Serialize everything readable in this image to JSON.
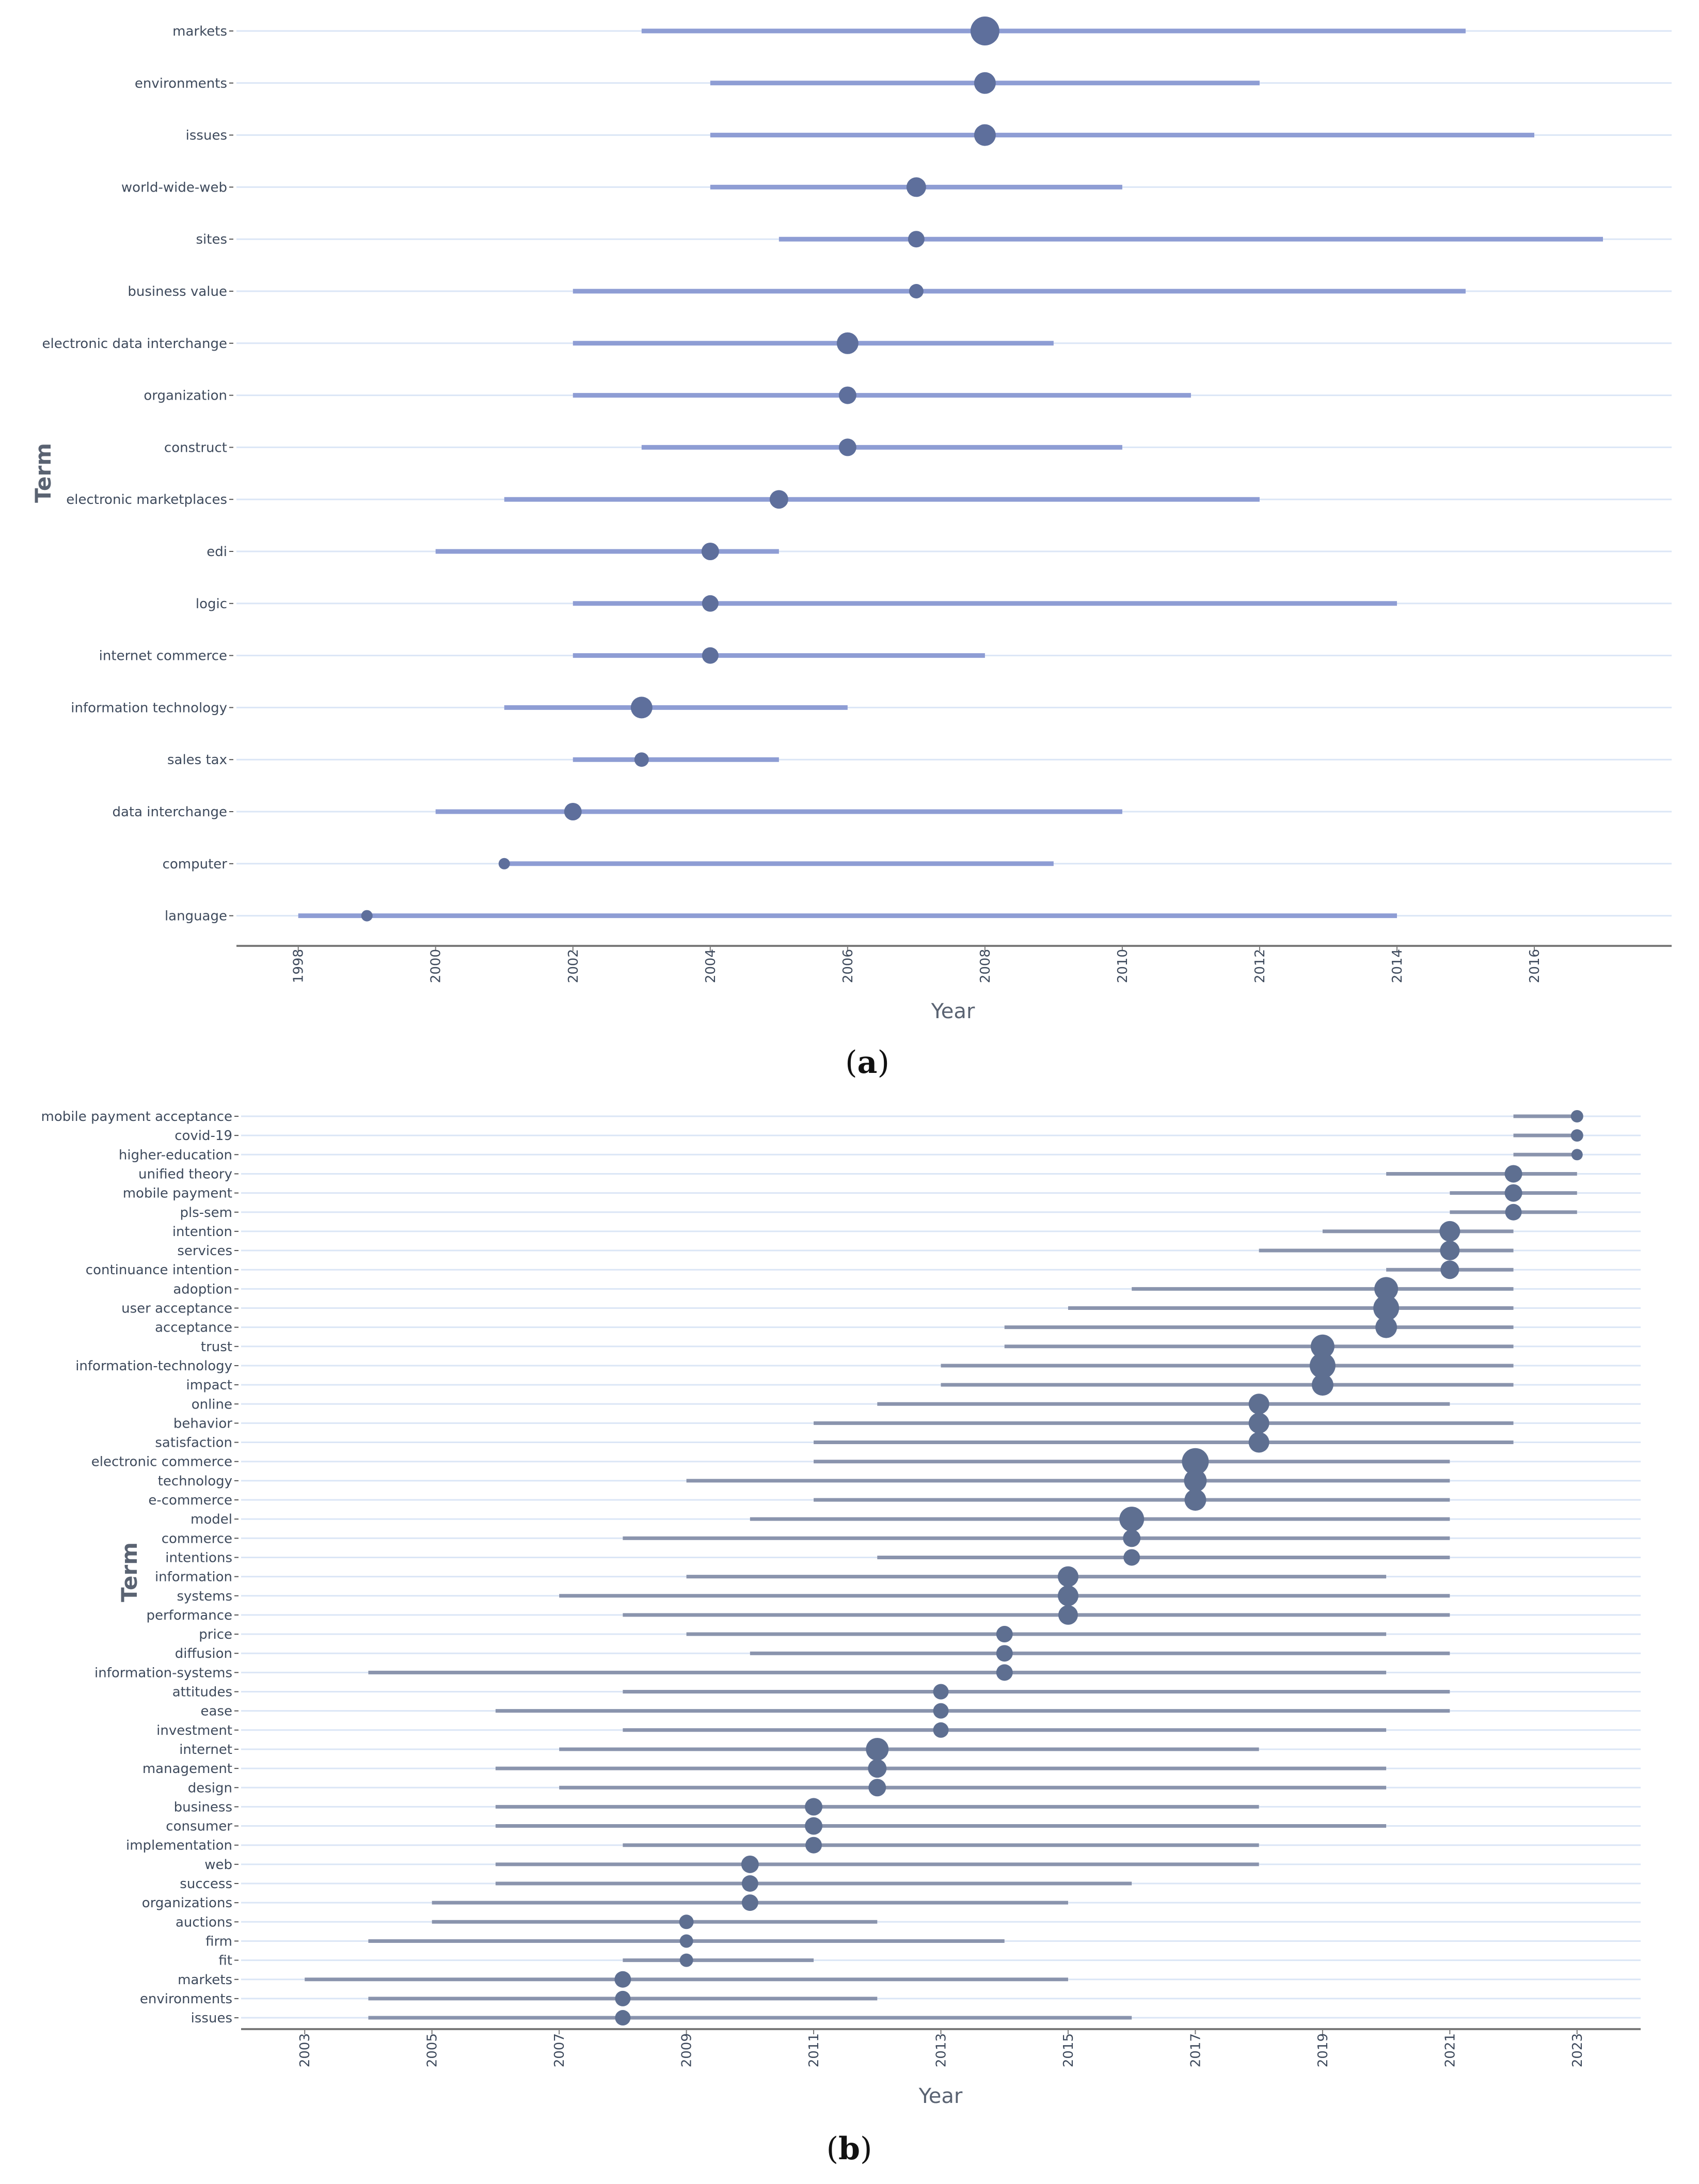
{
  "colors": {
    "a_line": "#8e9dd4",
    "a_point": "#5e6f9c",
    "b_line": "#8a94ad",
    "b_point": "#5e6f91",
    "grid": "#dbe6f6",
    "axis": "#7a7a7a"
  },
  "chart_data": [
    {
      "id": "a",
      "type": "scatter",
      "caption": {
        "open": "(",
        "letter": "a",
        "close": ")"
      },
      "xlabel": "Year",
      "ylabel": "Term",
      "xlim": [
        1997.1,
        2018.0
      ],
      "xticks": [
        "1998",
        "2000",
        "2002",
        "2004",
        "2006",
        "2008",
        "2010",
        "2012",
        "2014",
        "2016"
      ],
      "point_sizes": [
        28,
        21,
        21,
        19,
        16,
        14,
        21,
        17,
        17,
        18,
        17,
        16,
        16,
        21,
        14,
        17,
        11,
        11
      ],
      "terms": [
        {
          "term": "markets",
          "start": 2003,
          "median": 2008,
          "end": 2015
        },
        {
          "term": "environments",
          "start": 2004,
          "median": 2008,
          "end": 2012
        },
        {
          "term": "issues",
          "start": 2004,
          "median": 2008,
          "end": 2016
        },
        {
          "term": "world-wide-web",
          "start": 2004,
          "median": 2007,
          "end": 2010
        },
        {
          "term": "sites",
          "start": 2005,
          "median": 2007,
          "end": 2017
        },
        {
          "term": "business value",
          "start": 2002,
          "median": 2007,
          "end": 2015
        },
        {
          "term": "electronic data interchange",
          "start": 2002,
          "median": 2006,
          "end": 2009
        },
        {
          "term": "organization",
          "start": 2002,
          "median": 2006,
          "end": 2011
        },
        {
          "term": "construct",
          "start": 2003,
          "median": 2006,
          "end": 2010
        },
        {
          "term": "electronic marketplaces",
          "start": 2001,
          "median": 2005,
          "end": 2012
        },
        {
          "term": "edi",
          "start": 2000,
          "median": 2004,
          "end": 2005
        },
        {
          "term": "logic",
          "start": 2002,
          "median": 2004,
          "end": 2014
        },
        {
          "term": "internet commerce",
          "start": 2002,
          "median": 2004,
          "end": 2008
        },
        {
          "term": "information technology",
          "start": 2001,
          "median": 2003,
          "end": 2006
        },
        {
          "term": "sales tax",
          "start": 2002,
          "median": 2003,
          "end": 2005
        },
        {
          "term": "data interchange",
          "start": 2000,
          "median": 2002,
          "end": 2010
        },
        {
          "term": "computer",
          "start": 2001,
          "median": 2001,
          "end": 2009
        },
        {
          "term": "language",
          "start": 1998,
          "median": 1999,
          "end": 2014
        }
      ]
    },
    {
      "id": "b",
      "type": "scatter",
      "caption": {
        "open": "(",
        "letter": "b",
        "close": ")"
      },
      "xlabel": "Year",
      "ylabel": "Term",
      "xlim": [
        2002.0,
        2024.0
      ],
      "xticks": [
        "2003",
        "2005",
        "2007",
        "2009",
        "2011",
        "2013",
        "2015",
        "2017",
        "2019",
        "2021",
        "2023"
      ],
      "point_sizes": [
        12,
        12,
        11,
        17,
        17,
        16,
        20,
        19,
        18,
        23,
        25,
        21,
        23,
        25,
        21,
        20,
        20,
        20,
        26,
        22,
        21,
        24,
        17,
        16,
        20,
        20,
        19,
        16,
        16,
        16,
        15,
        15,
        15,
        22,
        18,
        17,
        17,
        17,
        16,
        17,
        16,
        16,
        14,
        13,
        13,
        16,
        15,
        15
      ],
      "terms": [
        {
          "term": "mobile payment acceptance",
          "start": 2022,
          "median": 2023,
          "end": 2023
        },
        {
          "term": "covid-19",
          "start": 2022,
          "median": 2023,
          "end": 2023
        },
        {
          "term": "higher-education",
          "start": 2022,
          "median": 2023,
          "end": 2023
        },
        {
          "term": "unified theory",
          "start": 2020,
          "median": 2022,
          "end": 2023
        },
        {
          "term": "mobile payment",
          "start": 2021,
          "median": 2022,
          "end": 2023
        },
        {
          "term": "pls-sem",
          "start": 2021,
          "median": 2022,
          "end": 2023
        },
        {
          "term": "intention",
          "start": 2019,
          "median": 2021,
          "end": 2022
        },
        {
          "term": "services",
          "start": 2018,
          "median": 2021,
          "end": 2022
        },
        {
          "term": "continuance intention",
          "start": 2020,
          "median": 2021,
          "end": 2022
        },
        {
          "term": "adoption",
          "start": 2016,
          "median": 2020,
          "end": 2022
        },
        {
          "term": "user acceptance",
          "start": 2015,
          "median": 2020,
          "end": 2022
        },
        {
          "term": "acceptance",
          "start": 2014,
          "median": 2020,
          "end": 2022
        },
        {
          "term": "trust",
          "start": 2014,
          "median": 2019,
          "end": 2022
        },
        {
          "term": "information-technology",
          "start": 2013,
          "median": 2019,
          "end": 2022
        },
        {
          "term": "impact",
          "start": 2013,
          "median": 2019,
          "end": 2022
        },
        {
          "term": "online",
          "start": 2012,
          "median": 2018,
          "end": 2021
        },
        {
          "term": "behavior",
          "start": 2011,
          "median": 2018,
          "end": 2022
        },
        {
          "term": "satisfaction",
          "start": 2011,
          "median": 2018,
          "end": 2022
        },
        {
          "term": "electronic commerce",
          "start": 2011,
          "median": 2017,
          "end": 2021
        },
        {
          "term": "technology",
          "start": 2009,
          "median": 2017,
          "end": 2021
        },
        {
          "term": "e-commerce",
          "start": 2011,
          "median": 2017,
          "end": 2021
        },
        {
          "term": "model",
          "start": 2010,
          "median": 2016,
          "end": 2021
        },
        {
          "term": "commerce",
          "start": 2008,
          "median": 2016,
          "end": 2021
        },
        {
          "term": "intentions",
          "start": 2012,
          "median": 2016,
          "end": 2021
        },
        {
          "term": "information",
          "start": 2009,
          "median": 2015,
          "end": 2020
        },
        {
          "term": "systems",
          "start": 2007,
          "median": 2015,
          "end": 2021
        },
        {
          "term": "performance",
          "start": 2008,
          "median": 2015,
          "end": 2021
        },
        {
          "term": "price",
          "start": 2009,
          "median": 2014,
          "end": 2020
        },
        {
          "term": "diffusion",
          "start": 2010,
          "median": 2014,
          "end": 2021
        },
        {
          "term": "information-systems",
          "start": 2004,
          "median": 2014,
          "end": 2020
        },
        {
          "term": "attitudes",
          "start": 2008,
          "median": 2013,
          "end": 2021
        },
        {
          "term": "ease",
          "start": 2006,
          "median": 2013,
          "end": 2021
        },
        {
          "term": "investment",
          "start": 2008,
          "median": 2013,
          "end": 2020
        },
        {
          "term": "internet",
          "start": 2007,
          "median": 2012,
          "end": 2018
        },
        {
          "term": "management",
          "start": 2006,
          "median": 2012,
          "end": 2020
        },
        {
          "term": "design",
          "start": 2007,
          "median": 2012,
          "end": 2020
        },
        {
          "term": "business",
          "start": 2006,
          "median": 2011,
          "end": 2018
        },
        {
          "term": "consumer",
          "start": 2006,
          "median": 2011,
          "end": 2020
        },
        {
          "term": "implementation",
          "start": 2008,
          "median": 2011,
          "end": 2018
        },
        {
          "term": "web",
          "start": 2006,
          "median": 2010,
          "end": 2018
        },
        {
          "term": "success",
          "start": 2006,
          "median": 2010,
          "end": 2016
        },
        {
          "term": "organizations",
          "start": 2005,
          "median": 2010,
          "end": 2015
        },
        {
          "term": "auctions",
          "start": 2005,
          "median": 2009,
          "end": 2012
        },
        {
          "term": "firm",
          "start": 2004,
          "median": 2009,
          "end": 2014
        },
        {
          "term": "fit",
          "start": 2008,
          "median": 2009,
          "end": 2011
        },
        {
          "term": "markets",
          "start": 2003,
          "median": 2008,
          "end": 2015
        },
        {
          "term": "environments",
          "start": 2004,
          "median": 2008,
          "end": 2012
        },
        {
          "term": "issues",
          "start": 2004,
          "median": 2008,
          "end": 2016
        }
      ]
    }
  ]
}
